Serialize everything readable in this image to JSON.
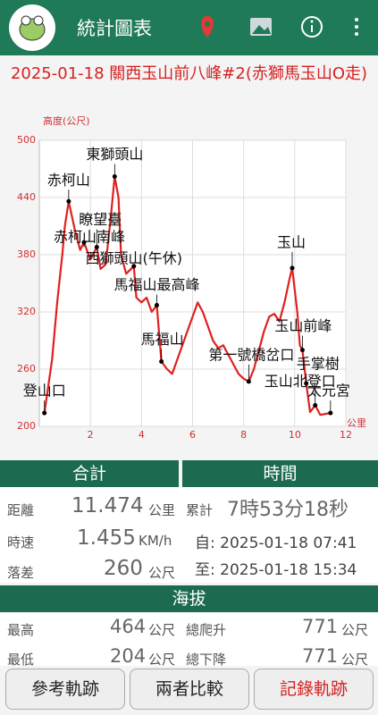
{
  "app_bar": {
    "title": "統計圖表"
  },
  "chart_data": {
    "type": "line",
    "title": "2025-01-18 關西玉山前八峰#2(赤獅馬玉山O走)",
    "y_label": "高度(公尺)",
    "x_label": "公里",
    "x": [
      0.2,
      0.5,
      0.7,
      0.9,
      1.0,
      1.15,
      1.4,
      1.6,
      1.75,
      2.0,
      2.25,
      2.4,
      2.6,
      2.8,
      2.95,
      3.1,
      3.2,
      3.4,
      3.7,
      3.8,
      4.0,
      4.2,
      4.4,
      4.6,
      4.78,
      5.0,
      5.2,
      5.4,
      5.6,
      5.8,
      6.0,
      6.2,
      6.4,
      6.6,
      6.8,
      7.0,
      7.2,
      7.4,
      7.6,
      7.8,
      8.0,
      8.2,
      8.4,
      8.6,
      8.8,
      9.0,
      9.2,
      9.4,
      9.6,
      9.8,
      9.9,
      10.1,
      10.2,
      10.3,
      10.45,
      10.6,
      10.8,
      11.0,
      11.2,
      11.4
    ],
    "series": [
      {
        "color": "#e02020",
        "values": [
          214,
          270,
          330,
          380,
          410,
          436,
          405,
          385,
          393,
          375,
          388,
          365,
          370,
          420,
          462,
          440,
          380,
          360,
          368,
          335,
          330,
          335,
          320,
          327,
          268,
          260,
          255,
          270,
          285,
          300,
          315,
          330,
          320,
          305,
          290,
          282,
          285,
          275,
          265,
          255,
          250,
          247,
          260,
          280,
          300,
          315,
          318,
          310,
          330,
          355,
          366,
          320,
          285,
          280,
          245,
          215,
          222,
          212,
          213,
          214
        ]
      }
    ],
    "xlim": [
      0,
      12
    ],
    "ylim": [
      200,
      500
    ],
    "xticks": [
      2,
      4,
      6,
      8,
      10,
      12
    ],
    "yticks": [
      200,
      260,
      320,
      380,
      440,
      500
    ],
    "grid": true,
    "annotations": [
      {
        "text": "登山口",
        "x": 0.2,
        "y": 214
      },
      {
        "text": "赤柯山",
        "x": 1.15,
        "y": 436
      },
      {
        "text": "赤柯山南峰",
        "x": 1.75,
        "y": 393
      },
      {
        "text": "瞭望臺",
        "x": 2.25,
        "y": 388
      },
      {
        "text": "東獅頭山",
        "x": 2.95,
        "y": 462
      },
      {
        "text": "西獅頭山(午休)",
        "x": 3.7,
        "y": 368
      },
      {
        "text": "馬福山最高峰",
        "x": 4.6,
        "y": 327
      },
      {
        "text": "馬福山",
        "x": 4.78,
        "y": 268
      },
      {
        "text": "第一號橋岔口",
        "x": 8.2,
        "y": 247
      },
      {
        "text": "玉山",
        "x": 9.9,
        "y": 366
      },
      {
        "text": "玉山前峰",
        "x": 10.3,
        "y": 280
      },
      {
        "text": "手掌樹",
        "x": 10.45,
        "y": 245
      },
      {
        "text": "玉山北登口",
        "x": 10.8,
        "y": 222
      },
      {
        "text": "太元宮",
        "x": 11.4,
        "y": 214
      }
    ]
  },
  "summary": {
    "header_total": "合計",
    "header_time": "時間",
    "header_altitude": "海拔",
    "distance": {
      "label": "距離",
      "value": "11.474",
      "unit": "公里"
    },
    "speed": {
      "label": "時速",
      "value": "1.455",
      "unit": "KM/h"
    },
    "drop": {
      "label": "落差",
      "value": "260",
      "unit": "公尺"
    },
    "elapsed": {
      "label": "累計",
      "value": "7時53分18秒"
    },
    "start": "自: 2025-01-18 07:41",
    "end": "至: 2025-01-18 15:34",
    "highest": {
      "label": "最高",
      "value": "464",
      "unit": "公尺"
    },
    "lowest": {
      "label": "最低",
      "value": "204",
      "unit": "公尺"
    },
    "ascent": {
      "label": "總爬升",
      "value": "771",
      "unit": "公尺"
    },
    "descent": {
      "label": "總下降",
      "value": "771",
      "unit": "公尺"
    }
  },
  "buttons": [
    "參考軌跡",
    "兩者比較",
    "記錄軌跡"
  ]
}
